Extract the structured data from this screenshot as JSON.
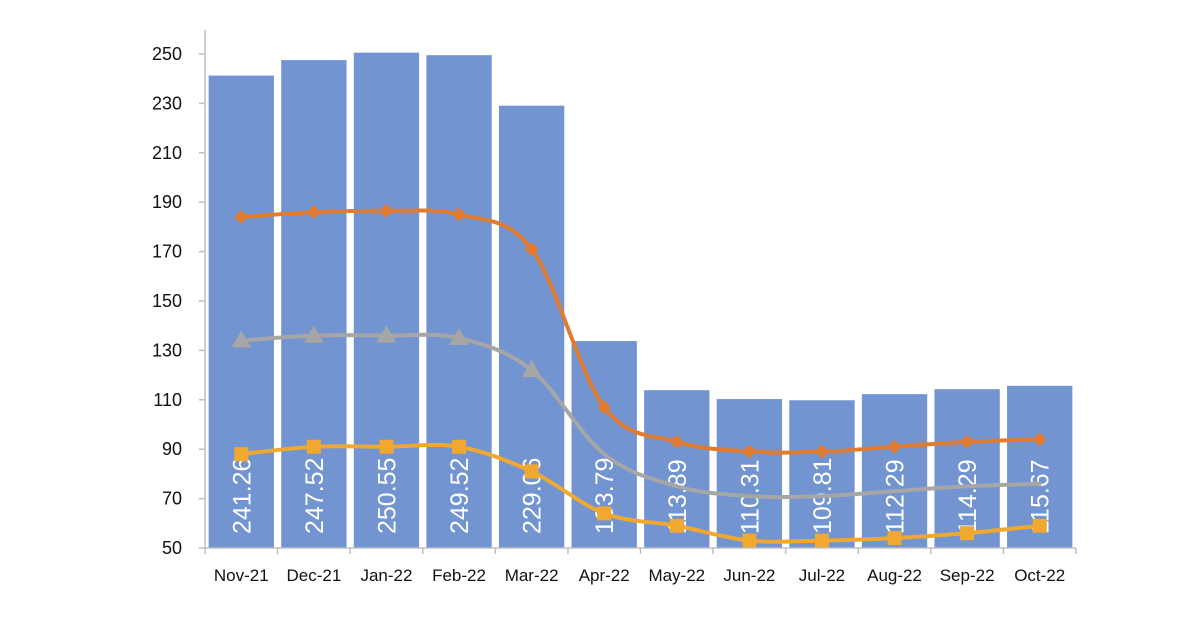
{
  "chart_data": {
    "type": "bar",
    "categories": [
      "Nov-21",
      "Dec-21",
      "Jan-22",
      "Feb-22",
      "Mar-22",
      "Apr-22",
      "May-22",
      "Jun-22",
      "Jul-22",
      "Aug-22",
      "Sep-22",
      "Oct-22"
    ],
    "bars": {
      "values": [
        241.26,
        247.52,
        250.55,
        249.52,
        229.06,
        133.79,
        113.89,
        110.31,
        109.81,
        112.29,
        114.29,
        115.67
      ],
      "labels": [
        "241.26",
        "247.52",
        "250.55",
        "249.52",
        "229.06",
        "133.79",
        "113.89",
        "110.31",
        "109.81",
        "112.29",
        "114.29",
        "115.67"
      ],
      "color": "#7294d0"
    },
    "lines": [
      {
        "values": [
          184,
          186,
          186.5,
          185,
          171,
          107,
          93,
          89,
          89,
          91,
          93,
          94
        ],
        "color": "#e07b30",
        "marker": "diamond"
      },
      {
        "values": [
          134,
          136,
          136,
          135,
          122,
          88,
          75,
          71,
          71,
          73,
          75,
          76
        ],
        "color": "#a6a6a6",
        "marker": "triangle"
      },
      {
        "values": [
          88,
          91,
          91,
          91,
          81,
          64,
          59,
          53,
          53,
          54,
          56,
          59
        ],
        "color": "#f0a830",
        "marker": "square"
      }
    ],
    "ylim": [
      50,
      250
    ],
    "yticks": [
      "50",
      "70",
      "90",
      "110",
      "130",
      "150",
      "170",
      "190",
      "210",
      "230",
      "250"
    ],
    "grid": false,
    "title": "",
    "xlabel": "",
    "ylabel": ""
  }
}
